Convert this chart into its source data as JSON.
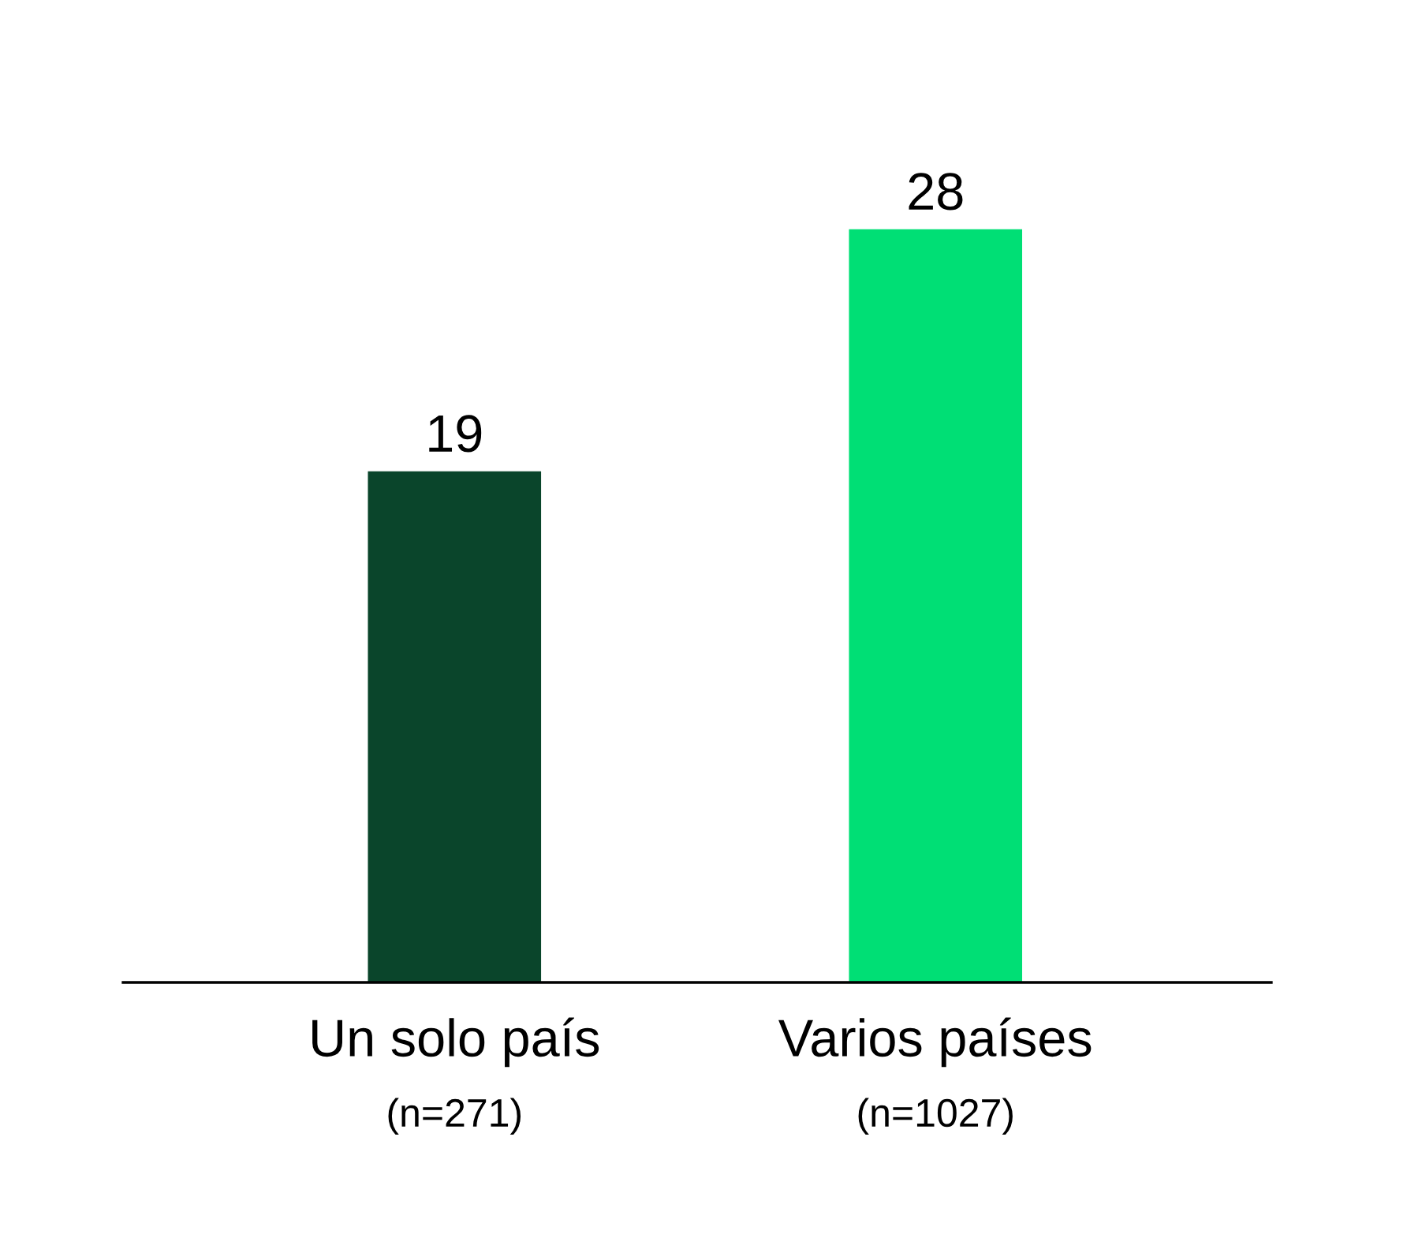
{
  "chart_data": {
    "type": "bar",
    "categories": [
      "Un solo país\n(n=271)",
      "Varios países\n(n=1027)"
    ],
    "values": [
      19,
      28
    ],
    "colors": [
      "#0a452b",
      "#00df75"
    ],
    "data_labels": true,
    "grid": false,
    "legend": false
  }
}
